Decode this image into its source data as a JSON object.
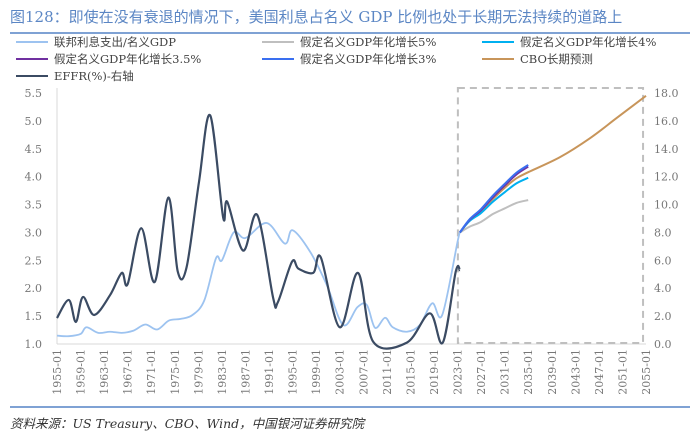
{
  "title": "图128：即使在没有衰退的情况下，美国利息占名义 GDP 比例也处于长期无法持续的道路上",
  "source": "资料来源：US Treasury、CBO、Wind，中国银河证券研究院",
  "chart_data": {
    "type": "line",
    "legend_placement": "top",
    "grid": false,
    "x_ticks": [
      "1955-01",
      "1959-01",
      "1963-01",
      "1967-01",
      "1971-01",
      "1975-01",
      "1979-01",
      "1983-01",
      "1987-01",
      "1991-01",
      "1995-01",
      "1999-01",
      "2003-01",
      "2007-01",
      "2011-01",
      "2015-01",
      "2019-01",
      "2023-01",
      "2027-01",
      "2031-01",
      "2035-01",
      "2039-01",
      "2043-01",
      "2047-01",
      "2051-01",
      "2055-01"
    ],
    "xlim": [
      1955,
      2055
    ],
    "y_left": {
      "ylim": [
        1.0,
        5.5
      ],
      "ticks": [
        "1.0",
        "1.5",
        "2.0",
        "2.5",
        "3.0",
        "3.5",
        "4.0",
        "4.5",
        "5.0",
        "5.5"
      ]
    },
    "y_right": {
      "ylim": [
        0,
        18
      ],
      "ticks": [
        "0.0",
        "2.0",
        "4.0",
        "6.0",
        "8.0",
        "10.0",
        "12.0",
        "14.0",
        "16.0",
        "18.0"
      ]
    },
    "forecast_box": {
      "x": [
        2023.4,
        2054.5
      ]
    },
    "series": [
      {
        "name": "联邦利息支出/名义GDP",
        "axis": "left",
        "color": "#9dc3f0",
        "points": [
          [
            1955,
            1.15
          ],
          [
            1957,
            1.14
          ],
          [
            1959,
            1.18
          ],
          [
            1960,
            1.3
          ],
          [
            1962,
            1.2
          ],
          [
            1964,
            1.22
          ],
          [
            1966,
            1.2
          ],
          [
            1968,
            1.24
          ],
          [
            1970,
            1.35
          ],
          [
            1972,
            1.26
          ],
          [
            1974,
            1.42
          ],
          [
            1976,
            1.45
          ],
          [
            1978,
            1.52
          ],
          [
            1980,
            1.78
          ],
          [
            1982,
            2.54
          ],
          [
            1983,
            2.5
          ],
          [
            1985,
            3.0
          ],
          [
            1987,
            2.9
          ],
          [
            1990.6,
            3.17
          ],
          [
            1993.7,
            2.8
          ],
          [
            1995,
            3.04
          ],
          [
            1998,
            2.65
          ],
          [
            2000.8,
            2.06
          ],
          [
            2003.6,
            1.34
          ],
          [
            2006,
            1.66
          ],
          [
            2007.6,
            1.7
          ],
          [
            2009,
            1.29
          ],
          [
            2010.7,
            1.47
          ],
          [
            2012,
            1.3
          ],
          [
            2014.4,
            1.22
          ],
          [
            2016.6,
            1.34
          ],
          [
            2018.7,
            1.73
          ],
          [
            2020.4,
            1.52
          ],
          [
            2023,
            2.83
          ],
          [
            2023.4,
            3.0
          ]
        ]
      },
      {
        "name": "假定名义GDP年化增长5%",
        "axis": "left",
        "color": "#bfbfbf",
        "points": [
          [
            2023.4,
            3.0
          ],
          [
            2025,
            3.1
          ],
          [
            2027,
            3.19
          ],
          [
            2029,
            3.33
          ],
          [
            2031,
            3.43
          ],
          [
            2033,
            3.53
          ],
          [
            2035,
            3.58
          ]
        ]
      },
      {
        "name": "假定名义GDP年化增长4%",
        "axis": "left",
        "color": "#00b0f0",
        "points": [
          [
            2023.4,
            3.0
          ],
          [
            2025,
            3.2
          ],
          [
            2027,
            3.35
          ],
          [
            2029,
            3.55
          ],
          [
            2031,
            3.72
          ],
          [
            2033,
            3.88
          ],
          [
            2035,
            3.98
          ]
        ]
      },
      {
        "name": "假定名义GDP年化增长3.5%",
        "axis": "left",
        "color": "#7030a0",
        "points": [
          [
            2023.4,
            3.0
          ],
          [
            2025,
            3.22
          ],
          [
            2027,
            3.4
          ],
          [
            2029,
            3.63
          ],
          [
            2031,
            3.84
          ],
          [
            2033,
            4.04
          ],
          [
            2035,
            4.18
          ]
        ]
      },
      {
        "name": "假定名义GDP年化增长3%",
        "axis": "left",
        "color": "#3a6ff0",
        "points": [
          [
            2023.4,
            3.0
          ],
          [
            2025,
            3.23
          ],
          [
            2027,
            3.42
          ],
          [
            2029,
            3.66
          ],
          [
            2031,
            3.87
          ],
          [
            2033,
            4.07
          ],
          [
            2035,
            4.21
          ]
        ]
      },
      {
        "name": "CBO长期预测",
        "axis": "left",
        "color": "#c8955a",
        "points": [
          [
            2023.4,
            3.0
          ],
          [
            2025,
            3.21
          ],
          [
            2027,
            3.38
          ],
          [
            2029,
            3.6
          ],
          [
            2031,
            3.8
          ],
          [
            2033,
            3.97
          ],
          [
            2035,
            4.08
          ],
          [
            2040.4,
            4.35
          ],
          [
            2045.5,
            4.69
          ],
          [
            2050,
            5.05
          ],
          [
            2055,
            5.45
          ]
        ]
      },
      {
        "name": "EFFR(%)-右轴",
        "axis": "right",
        "color": "#3b4b63",
        "points": [
          [
            1955,
            1.86
          ],
          [
            1957,
            3.16
          ],
          [
            1958.2,
            1.58
          ],
          [
            1959.4,
            3.37
          ],
          [
            1961.3,
            2.08
          ],
          [
            1964,
            3.5
          ],
          [
            1966,
            5.1
          ],
          [
            1967,
            4.3
          ],
          [
            1969.3,
            8.3
          ],
          [
            1971.6,
            4.45
          ],
          [
            1973.9,
            10.5
          ],
          [
            1975.5,
            5.2
          ],
          [
            1977,
            5.5
          ],
          [
            1979.1,
            11.6
          ],
          [
            1981,
            16.4
          ],
          [
            1983.2,
            9.1
          ],
          [
            1983.9,
            10.2
          ],
          [
            1986.6,
            6.7
          ],
          [
            1989,
            9.25
          ],
          [
            1991.7,
            3.3
          ],
          [
            1992.5,
            3.0
          ],
          [
            1994.9,
            5.9
          ],
          [
            1996,
            5.4
          ],
          [
            1998.5,
            5.1
          ],
          [
            1999.8,
            6.2
          ],
          [
            2003,
            1.2
          ],
          [
            2006.1,
            5.1
          ],
          [
            2008.7,
            0.15
          ],
          [
            2014.4,
            0.1
          ],
          [
            2018.3,
            2.2
          ],
          [
            2020.5,
            0.1
          ],
          [
            2022.7,
            5.2
          ],
          [
            2023.4,
            5.3
          ]
        ]
      }
    ]
  }
}
